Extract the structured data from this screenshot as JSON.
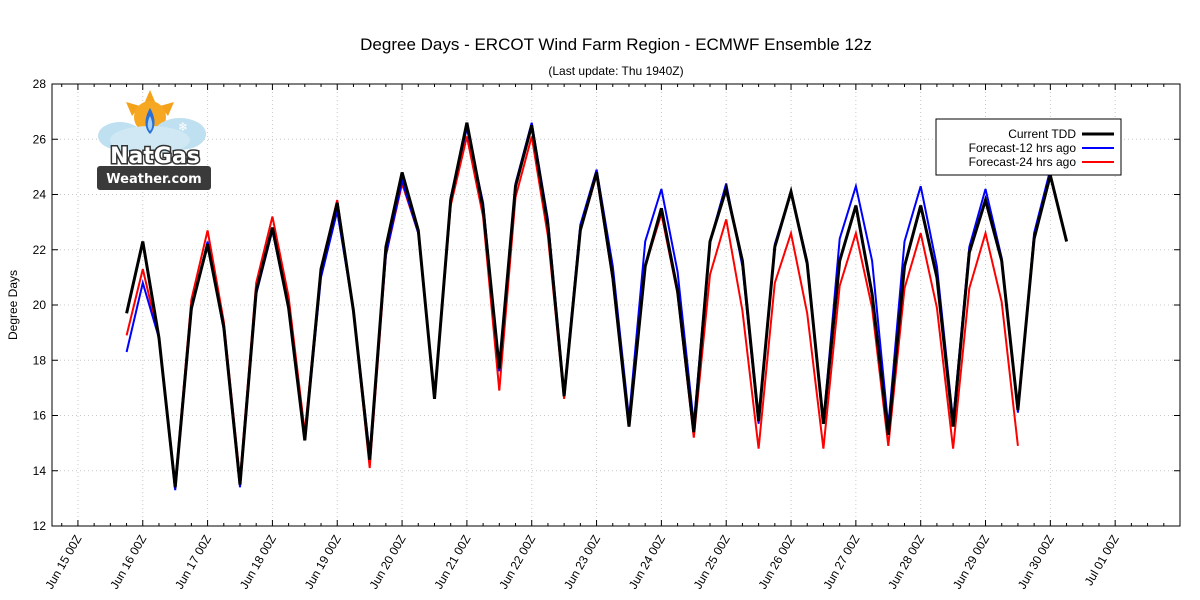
{
  "chart_data": {
    "type": "line",
    "title": "Degree Days - ERCOT Wind Farm Region - ECMWF Ensemble 12z",
    "subtitle": "(Last update: Thu 1940Z)",
    "ylabel": "Degree Days",
    "xlabel": "",
    "ylim": [
      12,
      28
    ],
    "yticks": [
      12,
      14,
      16,
      18,
      20,
      22,
      24,
      26,
      28
    ],
    "xlim": [
      14.6,
      32.0
    ],
    "xticks": [
      {
        "x": 15,
        "label": "Jun 15 00Z"
      },
      {
        "x": 16,
        "label": "Jun 16 00Z"
      },
      {
        "x": 17,
        "label": "Jun 17 00Z"
      },
      {
        "x": 18,
        "label": "Jun 18 00Z"
      },
      {
        "x": 19,
        "label": "Jun 19 00Z"
      },
      {
        "x": 20,
        "label": "Jun 20 00Z"
      },
      {
        "x": 21,
        "label": "Jun 21 00Z"
      },
      {
        "x": 22,
        "label": "Jun 22 00Z"
      },
      {
        "x": 23,
        "label": "Jun 23 00Z"
      },
      {
        "x": 24,
        "label": "Jun 24 00Z"
      },
      {
        "x": 25,
        "label": "Jun 25 00Z"
      },
      {
        "x": 26,
        "label": "Jun 26 00Z"
      },
      {
        "x": 27,
        "label": "Jun 27 00Z"
      },
      {
        "x": 28,
        "label": "Jun 28 00Z"
      },
      {
        "x": 29,
        "label": "Jun 29 00Z"
      },
      {
        "x": 30,
        "label": "Jun 30 00Z"
      },
      {
        "x": 31,
        "label": "Jul 01 00Z"
      }
    ],
    "grid": true,
    "legend_position": "top-right",
    "series": [
      {
        "name": "Current TDD",
        "color": "#000000",
        "x": [
          15.75,
          16.0,
          16.25,
          16.5,
          16.75,
          17.0,
          17.25,
          17.5,
          17.75,
          18.0,
          18.25,
          18.5,
          18.75,
          19.0,
          19.25,
          19.5,
          19.75,
          20.0,
          20.25,
          20.5,
          20.75,
          21.0,
          21.25,
          21.5,
          21.75,
          22.0,
          22.25,
          22.5,
          22.75,
          23.0,
          23.25,
          23.5,
          23.75,
          24.0,
          24.25,
          24.5,
          24.75,
          25.0,
          25.25,
          25.5,
          25.75,
          26.0,
          26.25,
          26.5,
          26.75,
          27.0,
          27.25,
          27.5,
          27.75,
          28.0,
          28.25,
          28.5,
          28.75,
          29.0,
          29.25,
          29.5,
          29.75,
          30.0,
          30.25
        ],
        "values": [
          19.7,
          22.3,
          18.8,
          13.4,
          19.9,
          22.2,
          19.2,
          13.5,
          20.5,
          22.8,
          19.9,
          15.1,
          21.3,
          23.7,
          19.8,
          14.4,
          22.1,
          24.8,
          22.7,
          16.6,
          23.8,
          26.6,
          23.5,
          17.7,
          24.3,
          26.5,
          22.9,
          16.7,
          22.7,
          24.8,
          21.0,
          15.6,
          21.4,
          23.5,
          20.5,
          15.4,
          22.3,
          24.2,
          21.6,
          15.8,
          22.1,
          24.1,
          21.5,
          15.7,
          21.6,
          23.6,
          20.4,
          15.3,
          21.4,
          23.6,
          21.0,
          15.6,
          21.9,
          23.8,
          21.6,
          16.2,
          22.4,
          24.7,
          22.3
        ]
      },
      {
        "name": "Forecast-12 hrs ago",
        "color": "#0000ff",
        "x": [
          15.75,
          16.0,
          16.25,
          16.5,
          16.75,
          17.0,
          17.25,
          17.5,
          17.75,
          18.0,
          18.25,
          18.5,
          18.75,
          19.0,
          19.25,
          19.5,
          19.75,
          20.0,
          20.25,
          20.5,
          20.75,
          21.0,
          21.25,
          21.5,
          21.75,
          22.0,
          22.25,
          22.5,
          22.75,
          23.0,
          23.25,
          23.5,
          23.75,
          24.0,
          24.25,
          24.5,
          24.75,
          25.0,
          25.25,
          25.5,
          25.75,
          26.0,
          26.25,
          26.5,
          26.75,
          27.0,
          27.25,
          27.5,
          27.75,
          28.0,
          28.25,
          28.5,
          28.75,
          29.0,
          29.25,
          29.5,
          29.75,
          30.0
        ],
        "values": [
          18.3,
          20.8,
          18.8,
          13.3,
          19.8,
          22.3,
          19.1,
          13.4,
          20.4,
          22.7,
          19.9,
          15.1,
          21.0,
          23.4,
          19.8,
          14.6,
          21.8,
          24.5,
          22.6,
          16.6,
          23.9,
          26.4,
          23.7,
          17.6,
          24.4,
          26.6,
          23.1,
          16.8,
          22.9,
          24.9,
          21.4,
          15.9,
          22.3,
          24.2,
          21.2,
          15.7,
          22.3,
          24.4,
          21.4,
          15.7,
          22.2,
          24.1,
          21.6,
          15.7,
          22.4,
          24.3,
          21.6,
          15.6,
          22.3,
          24.3,
          21.4,
          15.8,
          22.1,
          24.2,
          21.7,
          16.1,
          22.6,
          24.9
        ]
      },
      {
        "name": "Forecast-24 hrs ago",
        "color": "#ff0000",
        "x": [
          15.75,
          16.0,
          16.25,
          16.5,
          16.75,
          17.0,
          17.25,
          17.5,
          17.75,
          18.0,
          18.25,
          18.5,
          18.75,
          19.0,
          19.25,
          19.5,
          19.75,
          20.0,
          20.25,
          20.5,
          20.75,
          21.0,
          21.25,
          21.5,
          21.75,
          22.0,
          22.25,
          22.5,
          22.75,
          23.0,
          23.25,
          23.5,
          23.75,
          24.0,
          24.25,
          24.5,
          24.75,
          25.0,
          25.25,
          25.5,
          25.75,
          26.0,
          26.25,
          26.5,
          26.75,
          27.0,
          27.25,
          27.5,
          27.75,
          28.0,
          28.25,
          28.5,
          28.75,
          29.0,
          29.25,
          29.5
        ],
        "values": [
          18.9,
          21.3,
          18.8,
          13.5,
          20.2,
          22.7,
          19.4,
          13.7,
          20.8,
          23.2,
          20.3,
          15.4,
          21.3,
          23.8,
          19.8,
          14.1,
          21.8,
          24.4,
          22.6,
          16.6,
          23.6,
          26.1,
          23.2,
          16.9,
          23.9,
          26.1,
          22.5,
          16.6,
          22.7,
          24.7,
          20.9,
          15.6,
          21.4,
          23.3,
          20.4,
          15.2,
          21.1,
          23.1,
          19.8,
          14.8,
          20.8,
          22.6,
          19.7,
          14.8,
          20.7,
          22.6,
          19.9,
          14.9,
          20.6,
          22.6,
          19.9,
          14.8,
          20.6,
          22.6,
          20.1,
          14.9
        ]
      }
    ]
  },
  "logo": {
    "line1": "NatGas",
    "line2": "Weather.com"
  }
}
